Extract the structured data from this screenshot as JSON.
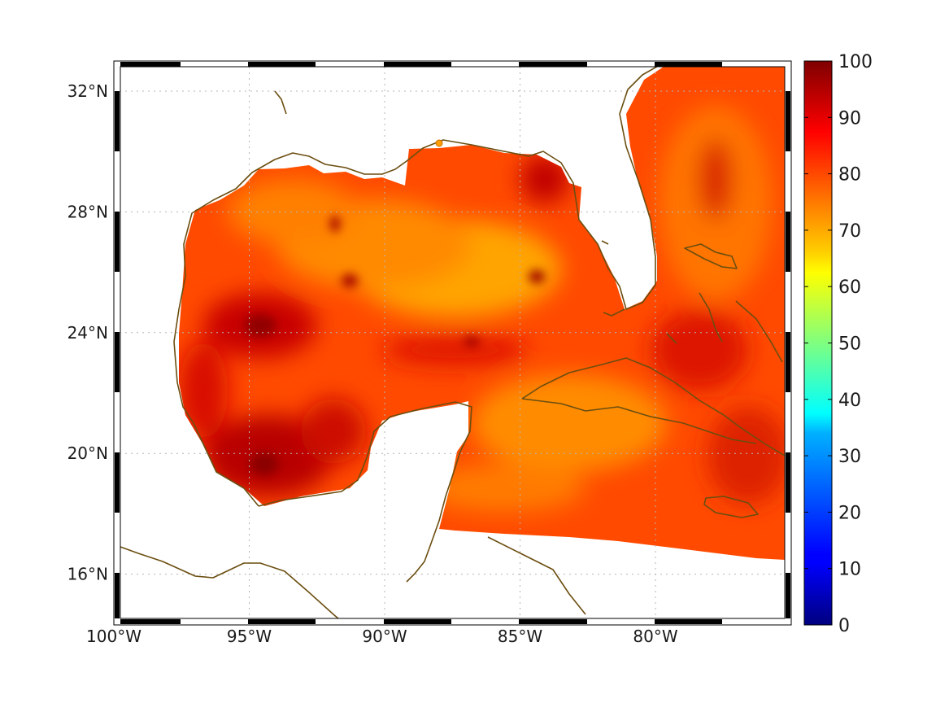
{
  "map": {
    "region": "Gulf of Mexico and western Caribbean",
    "lon_range": [
      -100,
      -75
    ],
    "lat_range": [
      14.3,
      33
    ],
    "longitude_ticks": [
      {
        "value": -100,
        "label": "100°W"
      },
      {
        "value": -95,
        "label": "95°W"
      },
      {
        "value": -90,
        "label": "90°W"
      },
      {
        "value": -85,
        "label": "85°W"
      },
      {
        "value": -80,
        "label": "80°W"
      }
    ],
    "latitude_ticks": [
      {
        "value": 32,
        "label": "32°N"
      },
      {
        "value": 28,
        "label": "28°N"
      },
      {
        "value": 24,
        "label": "24°N"
      },
      {
        "value": 20,
        "label": "20°N"
      },
      {
        "value": 16,
        "label": "16°N"
      }
    ],
    "grid": true,
    "frame_style": "alternating black-white border",
    "coastline_color": "#6b4e10"
  },
  "colorbar": {
    "colormap": "jet",
    "range": [
      0,
      100
    ],
    "labels": [
      "100",
      "90",
      "80",
      "70",
      "60",
      "50",
      "40",
      "30",
      "20",
      "10",
      "0"
    ],
    "values": [
      100,
      90,
      80,
      70,
      60,
      50,
      40,
      30,
      20,
      10,
      0
    ],
    "placement": "right"
  },
  "field": {
    "dominant_value_range": [
      72,
      97
    ],
    "colors": {
      "low": "#ff9a00",
      "mid": "#ff4400",
      "high": "#c80000",
      "max": "#8a0000",
      "land": "#ffffff"
    }
  }
}
